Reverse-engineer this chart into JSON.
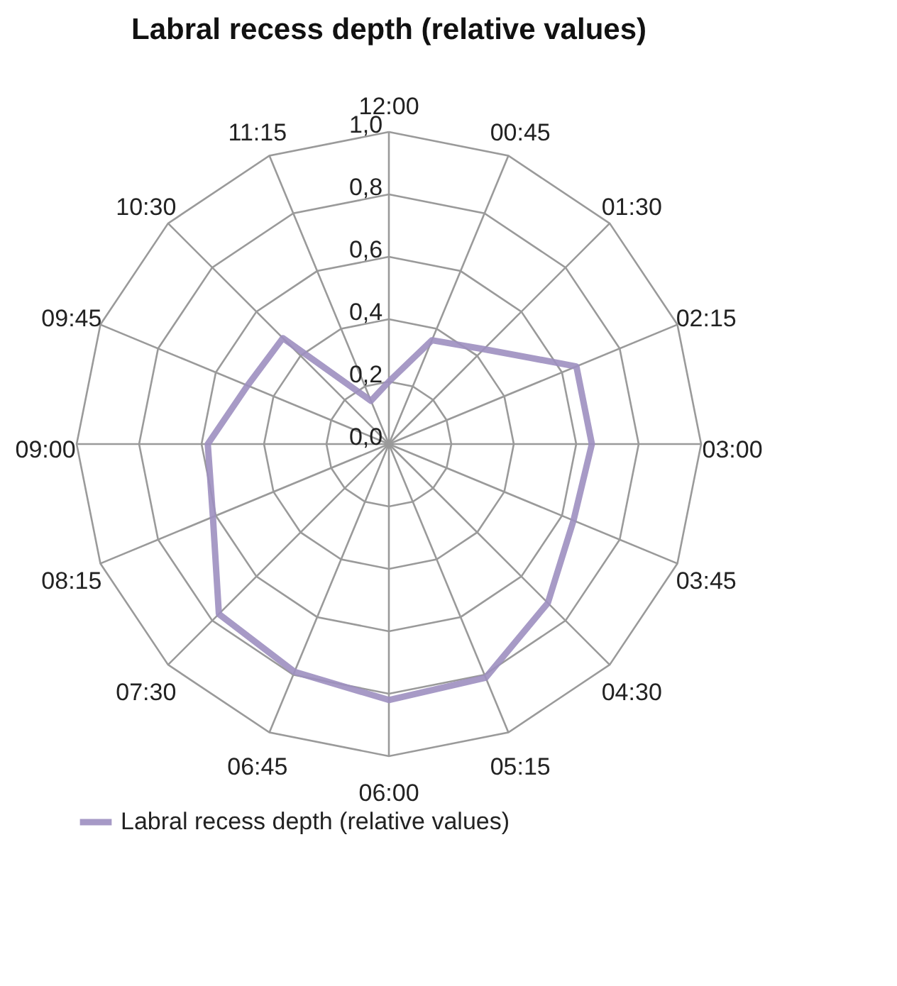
{
  "chart_data": {
    "type": "radar",
    "title": "Labral recess depth (relative values)",
    "categories": [
      "12:00",
      "00:45",
      "01:30",
      "02:15",
      "03:00",
      "03:45",
      "04:30",
      "05:15",
      "06:00",
      "06:45",
      "07:30",
      "08:15",
      "09:00",
      "09:45",
      "10:30",
      "11:15"
    ],
    "series": [
      {
        "name": "Labral recess depth (relative values)",
        "color": "#9d8fc0",
        "values": [
          0.2,
          0.36,
          0.43,
          0.65,
          0.65,
          0.64,
          0.72,
          0.81,
          0.82,
          0.79,
          0.77,
          0.61,
          0.58,
          0.49,
          0.48,
          0.15
        ]
      }
    ],
    "ylim": [
      0,
      1
    ],
    "yticks": [
      {
        "value": 0,
        "label": "0,0"
      },
      {
        "value": 0.2,
        "label": "0,2"
      },
      {
        "value": 0.4,
        "label": "0,4"
      },
      {
        "value": 0.6,
        "label": "0,6"
      },
      {
        "value": 0.8,
        "label": "0,8"
      },
      {
        "value": 1,
        "label": "1,0"
      }
    ],
    "grid": true,
    "legend": "bottom",
    "marker": "none",
    "line_style": "solid"
  }
}
